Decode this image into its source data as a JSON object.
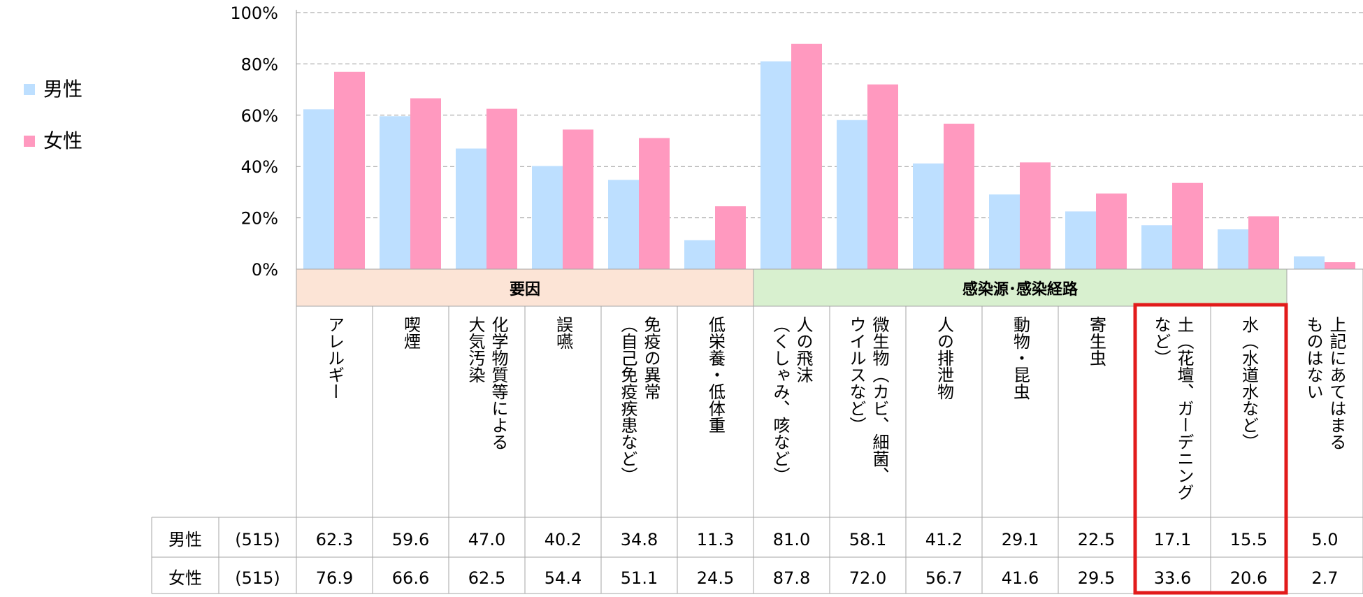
{
  "chart_data": {
    "type": "bar",
    "ylim": [
      0,
      100
    ],
    "yticks": [
      0,
      20,
      40,
      60,
      80,
      100
    ],
    "ytick_suffix": "%",
    "grid": true,
    "legend_position": "left",
    "groups": [
      {
        "label": "要因",
        "color": "#fce4d6",
        "span": [
          0,
          5
        ]
      },
      {
        "label": "感染源･感染経路",
        "color": "#d8f0cf",
        "span": [
          6,
          12
        ]
      }
    ],
    "categories": [
      "アレルギー",
      "喫煙",
      "化学物質等による大気汚染",
      "誤嚥",
      "免疫の異常（自己免疫疾患など）",
      "低栄養・低体重",
      "人の飛沫（くしゃみ、咳など）",
      "微生物（カビ、細菌、ウイルスなど）",
      "人の排泄物",
      "動物・昆虫",
      "寄生虫",
      "土（花壇、ガーデニングなど）",
      "水（水道水など）",
      "上記にあてはまるものはない"
    ],
    "category_lines": [
      [
        "アレルギー"
      ],
      [
        "喫煙"
      ],
      [
        "化学物質等による",
        "大気汚染"
      ],
      [
        "誤嚥"
      ],
      [
        "免疫の異常",
        "（自己免疫疾患など）"
      ],
      [
        "低栄養・低体重"
      ],
      [
        "人の飛沫",
        "（くしゃみ、咳など）"
      ],
      [
        "微生物（カビ、細菌、",
        "ウイルスなど）"
      ],
      [
        "人の排泄物"
      ],
      [
        "動物・昆虫"
      ],
      [
        "寄生虫"
      ],
      [
        "土（花壇、ガーデニング",
        "など）"
      ],
      [
        "水（水道水など）"
      ],
      [
        "上記にあてはまる",
        "ものはない"
      ]
    ],
    "series": [
      {
        "name": "男性",
        "n": "(515)",
        "color": "#bddfff",
        "values": [
          62.3,
          59.6,
          47.0,
          40.2,
          34.8,
          11.3,
          81.0,
          58.1,
          41.2,
          29.1,
          22.5,
          17.1,
          15.5,
          5.0
        ]
      },
      {
        "name": "女性",
        "n": "(515)",
        "color": "#ff99bf",
        "values": [
          76.9,
          66.6,
          62.5,
          54.4,
          51.1,
          24.5,
          87.8,
          72.0,
          56.7,
          41.6,
          29.5,
          33.6,
          20.6,
          2.7
        ]
      }
    ],
    "highlight": {
      "span": [
        11,
        12
      ],
      "color": "#e21b1b"
    }
  }
}
